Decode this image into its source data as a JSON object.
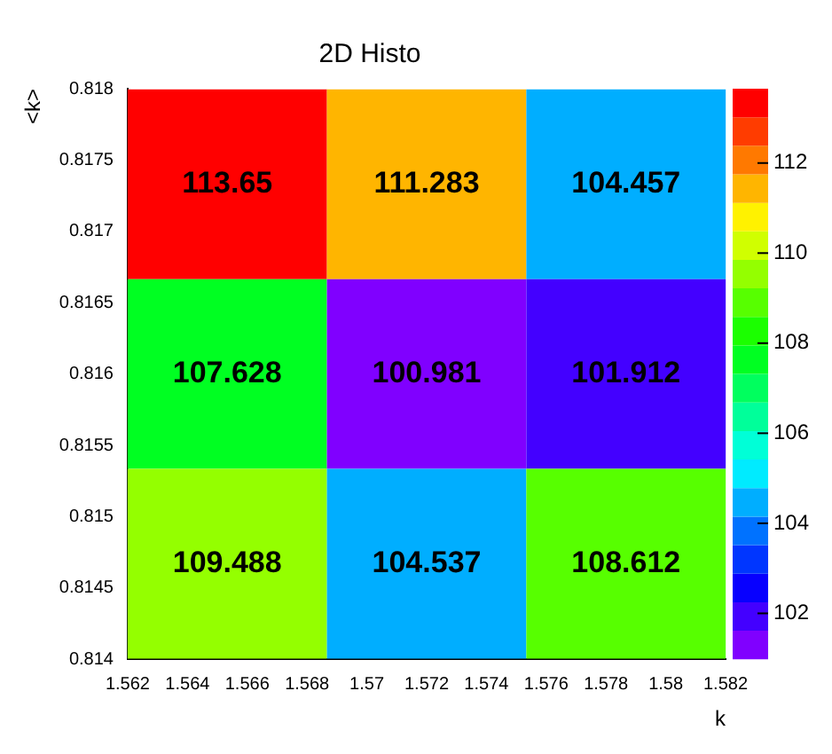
{
  "chart_data": {
    "type": "heatmap",
    "title": "2D Histo",
    "xlabel": "k",
    "ylabel": "<k>",
    "x": [
      1.56533,
      1.572,
      1.57867
    ],
    "y": [
      0.81733,
      0.816,
      0.81467
    ],
    "cells": [
      [
        113.65,
        111.283,
        104.457
      ],
      [
        107.628,
        100.981,
        101.912
      ],
      [
        109.488,
        104.537,
        108.612
      ]
    ],
    "data_labels": true,
    "xlim": [
      1.562,
      1.582
    ],
    "xticks": [
      1.562,
      1.564,
      1.566,
      1.568,
      1.57,
      1.572,
      1.574,
      1.576,
      1.578,
      1.58,
      1.582
    ],
    "ylim": [
      0.814,
      0.818
    ],
    "yticks": [
      0.814,
      0.8145,
      0.815,
      0.8155,
      0.816,
      0.8165,
      0.817,
      0.8175,
      0.818
    ],
    "clim": [
      100.981,
      113.65
    ],
    "cticks": [
      102,
      104,
      106,
      108,
      110,
      112
    ]
  }
}
